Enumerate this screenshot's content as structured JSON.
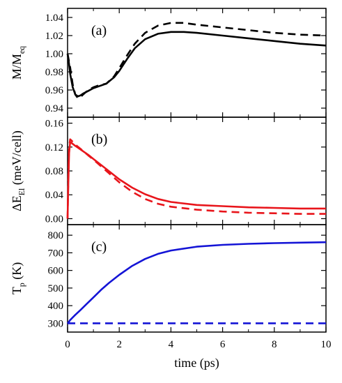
{
  "chart_data": {
    "type": "line",
    "xlabel": "time (ps)",
    "xlim": [
      0,
      10
    ],
    "xticks": [
      0,
      2,
      4,
      6,
      8,
      10
    ],
    "xtick_labels": [
      "0",
      "2",
      "4",
      "6",
      "8",
      "10"
    ],
    "panels": [
      {
        "tag": "(a)",
        "ylabel_parts": [
          "M/M",
          "eq"
        ],
        "ylim": [
          0.93,
          1.05
        ],
        "yticks": [
          0.94,
          0.96,
          0.98,
          1.0,
          1.02,
          1.04
        ],
        "ytick_labels": [
          "0.94",
          "0.96",
          "0.98",
          "1.00",
          "1.02",
          "1.04"
        ],
        "series": [
          {
            "color": "#000000",
            "dash": false,
            "x": [
              0,
              0.05,
              0.1,
              0.2,
              0.3,
              0.4,
              0.5,
              0.6,
              0.8,
              1.0,
              1.2,
              1.5,
              1.8,
              2.0,
              2.3,
              2.6,
              3.0,
              3.5,
              4.0,
              4.5,
              5.0,
              6.0,
              7.0,
              8.0,
              9.0,
              10.0
            ],
            "y": [
              1.0,
              0.99,
              0.978,
              0.963,
              0.955,
              0.953,
              0.954,
              0.956,
              0.959,
              0.962,
              0.964,
              0.967,
              0.974,
              0.981,
              0.994,
              1.006,
              1.016,
              1.022,
              1.024,
              1.024,
              1.023,
              1.02,
              1.017,
              1.014,
              1.011,
              1.009
            ]
          },
          {
            "color": "#000000",
            "dash": true,
            "x": [
              0,
              0.1,
              0.2,
              0.3,
              0.4,
              0.5,
              0.6,
              0.8,
              1.0,
              1.2,
              1.5,
              1.8,
              2.0,
              2.3,
              2.6,
              3.0,
              3.5,
              4.0,
              4.5,
              5.0,
              6.0,
              7.0,
              8.0,
              9.0,
              10.0
            ],
            "y": [
              1.0,
              0.985,
              0.966,
              0.955,
              0.951,
              0.952,
              0.955,
              0.96,
              0.963,
              0.965,
              0.967,
              0.975,
              0.984,
              0.998,
              1.011,
              1.023,
              1.031,
              1.034,
              1.034,
              1.032,
              1.029,
              1.026,
              1.023,
              1.021,
              1.02
            ]
          }
        ]
      },
      {
        "tag": "(b)",
        "ylabel_parts": [
          "ΔE",
          "El",
          " (meV/cell)"
        ],
        "ylim": [
          -0.01,
          0.17
        ],
        "yticks": [
          0.0,
          0.04,
          0.08,
          0.12,
          0.16
        ],
        "ytick_labels": [
          "0.00",
          "0.04",
          "0.08",
          "0.12",
          "0.16"
        ],
        "series": [
          {
            "color": "#e8151b",
            "dash": false,
            "x": [
              0,
              0.03,
              0.06,
              0.1,
              0.15,
              0.3,
              0.5,
              0.8,
              1.0,
              1.5,
              2.0,
              2.5,
              3.0,
              3.5,
              4.0,
              5.0,
              6.0,
              7.0,
              8.0,
              9.0,
              10.0
            ],
            "y": [
              0.0,
              0.06,
              0.11,
              0.128,
              0.127,
              0.122,
              0.116,
              0.107,
              0.1,
              0.083,
              0.066,
              0.052,
              0.041,
              0.033,
              0.028,
              0.023,
              0.021,
              0.019,
              0.018,
              0.017,
              0.017
            ]
          },
          {
            "color": "#e8151b",
            "dash": true,
            "x": [
              0,
              0.03,
              0.06,
              0.1,
              0.15,
              0.3,
              0.5,
              0.8,
              1.0,
              1.5,
              2.0,
              2.5,
              3.0,
              3.5,
              4.0,
              5.0,
              6.0,
              7.0,
              8.0,
              9.0,
              10.0
            ],
            "y": [
              0.0,
              0.07,
              0.12,
              0.133,
              0.131,
              0.124,
              0.117,
              0.106,
              0.099,
              0.08,
              0.061,
              0.045,
              0.033,
              0.025,
              0.02,
              0.015,
              0.012,
              0.01,
              0.009,
              0.008,
              0.008
            ]
          }
        ]
      },
      {
        "tag": "(c)",
        "ylabel_parts": [
          "T",
          "p",
          " (K)"
        ],
        "ylim": [
          250,
          860
        ],
        "yticks": [
          300,
          400,
          500,
          600,
          700,
          800
        ],
        "ytick_labels": [
          "300",
          "400",
          "500",
          "600",
          "700",
          "800"
        ],
        "series": [
          {
            "color": "#1414d6",
            "dash": false,
            "x": [
              0,
              0.05,
              0.1,
              0.2,
              0.3,
              0.5,
              0.7,
              1.0,
              1.3,
              1.6,
              2.0,
              2.5,
              3.0,
              3.5,
              4.0,
              5.0,
              6.0,
              7.0,
              8.0,
              9.0,
              10.0
            ],
            "y": [
              300,
              308,
              318,
              333,
              348,
              375,
              404,
              447,
              490,
              529,
              575,
              626,
              665,
              694,
              713,
              735,
              745,
              751,
              755,
              758,
              760
            ]
          },
          {
            "color": "#1414d6",
            "dash": true,
            "x": [
              0,
              10
            ],
            "y": [
              300,
              300
            ]
          }
        ]
      }
    ]
  }
}
